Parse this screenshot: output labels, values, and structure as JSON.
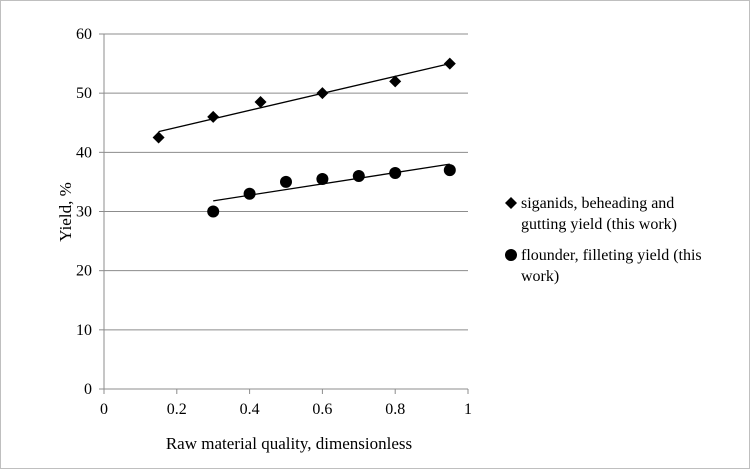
{
  "chart_data": {
    "type": "scatter",
    "title": "",
    "xlabel": "Raw material quality, dimensionless",
    "ylabel": "Yield, %",
    "xlim": [
      0,
      1
    ],
    "ylim": [
      0,
      60
    ],
    "x_ticks": [
      0,
      0.2,
      0.4,
      0.6,
      0.8,
      1
    ],
    "x_tick_labels": [
      "0",
      "0.2",
      "0.4",
      "0.6",
      "0.8",
      "1"
    ],
    "y_ticks": [
      0,
      10,
      20,
      30,
      40,
      50,
      60
    ],
    "y_tick_labels": [
      "0",
      "10",
      "20",
      "30",
      "40",
      "50",
      "60"
    ],
    "grid": "horizontal",
    "legend_position": "right",
    "series": [
      {
        "name": "siganids, beheading and gutting yield (this work)",
        "name_lines": [
          "siganids, beheading and",
          "gutting yield (this work)"
        ],
        "marker": "diamond",
        "color": "#000000",
        "x": [
          0.15,
          0.3,
          0.43,
          0.6,
          0.8,
          0.95
        ],
        "y": [
          42.5,
          46,
          48.5,
          50,
          52,
          55
        ],
        "trendline": {
          "x": [
            0.15,
            0.95
          ],
          "y": [
            43.5,
            55
          ]
        }
      },
      {
        "name": "flounder, filleting yield (this work)",
        "name_lines": [
          "flounder, filleting yield (this",
          "work)"
        ],
        "marker": "circle",
        "color": "#000000",
        "x": [
          0.3,
          0.4,
          0.5,
          0.6,
          0.7,
          0.8,
          0.95
        ],
        "y": [
          30,
          33,
          35,
          35.5,
          36,
          36.5,
          37
        ],
        "trendline": {
          "x": [
            0.3,
            0.95
          ],
          "y": [
            31.8,
            38
          ]
        }
      }
    ]
  }
}
